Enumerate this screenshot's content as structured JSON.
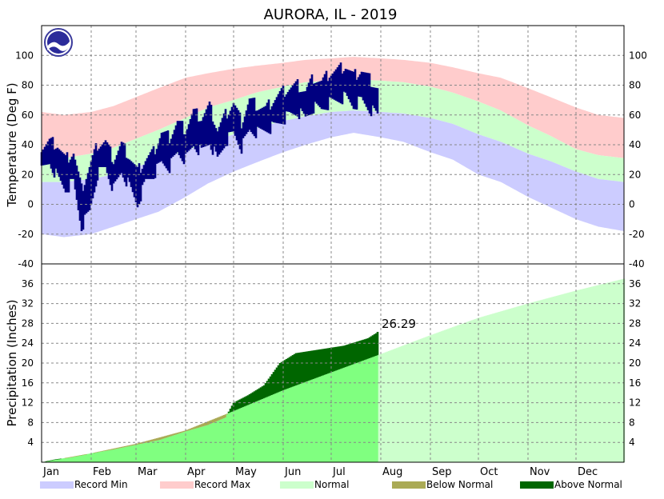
{
  "chart_data": {
    "type": "area",
    "title": "AURORA, IL - 2019",
    "months": [
      "Jan",
      "Feb",
      "Mar",
      "Apr",
      "May",
      "Jun",
      "Jul",
      "Aug",
      "Sep",
      "Oct",
      "Nov",
      "Dec"
    ],
    "grid": true,
    "legend_position": "bottom",
    "colors": {
      "record_min": "#ccccff",
      "record_max": "#ffcccc",
      "normal": "#ccffcc",
      "observed_temp": "#000080",
      "below_normal": "#aaaa55",
      "above_normal": "#006600",
      "precip_normal_ytd": "#80ff80"
    },
    "legend": [
      {
        "label": "Record Min",
        "color": "#ccccff"
      },
      {
        "label": "Record Max",
        "color": "#ffcccc"
      },
      {
        "label": "Normal",
        "color": "#ccffcc"
      },
      {
        "label": "Below Normal",
        "color": "#aaaa55"
      },
      {
        "label": "Above Normal",
        "color": "#006600"
      }
    ],
    "temperature": {
      "ylabel": "Temperature (Deg F)",
      "ylim": [
        -40,
        120
      ],
      "ticks": [
        -40,
        -20,
        0,
        20,
        40,
        60,
        80,
        100
      ],
      "day_of_year": [
        1,
        15,
        32,
        46,
        60,
        74,
        91,
        105,
        121,
        135,
        152,
        166,
        182,
        196,
        213,
        227,
        244,
        258,
        274,
        288,
        305,
        319,
        335,
        349,
        365
      ],
      "record_max": [
        62,
        60,
        62,
        66,
        72,
        78,
        85,
        88,
        91,
        93,
        95,
        97,
        98,
        99,
        98,
        97,
        95,
        92,
        88,
        85,
        78,
        72,
        65,
        60,
        58
      ],
      "normal_high": [
        31,
        31,
        34,
        38,
        44,
        50,
        58,
        65,
        70,
        75,
        79,
        82,
        83,
        84,
        83,
        82,
        79,
        75,
        69,
        63,
        53,
        46,
        37,
        33,
        31
      ],
      "normal_low": [
        15,
        15,
        17,
        20,
        25,
        30,
        36,
        41,
        47,
        51,
        56,
        59,
        62,
        63,
        62,
        61,
        58,
        54,
        47,
        42,
        34,
        29,
        22,
        17,
        15
      ],
      "record_min": [
        -20,
        -22,
        -20,
        -15,
        -10,
        -5,
        5,
        14,
        22,
        28,
        35,
        40,
        45,
        48,
        45,
        42,
        35,
        30,
        20,
        15,
        5,
        -2,
        -10,
        -15,
        -18
      ],
      "observed": {
        "day_of_year": [
          1,
          6,
          11,
          16,
          21,
          26,
          31,
          36,
          41,
          46,
          51,
          56,
          61,
          66,
          71,
          76,
          81,
          86,
          91,
          96,
          101,
          106,
          111,
          116,
          121,
          126,
          131,
          136,
          141,
          146,
          151,
          156,
          161,
          166,
          171,
          176,
          181,
          186,
          191,
          196,
          201,
          206,
          211
        ],
        "high": [
          38,
          42,
          40,
          30,
          35,
          10,
          25,
          40,
          42,
          30,
          40,
          32,
          22,
          30,
          35,
          48,
          45,
          55,
          50,
          62,
          58,
          66,
          50,
          60,
          68,
          55,
          70,
          66,
          64,
          70,
          75,
          78,
          80,
          76,
          85,
          82,
          88,
          90,
          93,
          86,
          90,
          84,
          78
        ],
        "low": [
          22,
          28,
          18,
          10,
          15,
          -15,
          -5,
          20,
          25,
          10,
          22,
          12,
          0,
          15,
          20,
          28,
          25,
          35,
          30,
          40,
          35,
          42,
          30,
          42,
          48,
          38,
          50,
          48,
          50,
          52,
          56,
          60,
          62,
          58,
          65,
          64,
          68,
          70,
          72,
          66,
          70,
          64,
          60
        ]
      }
    },
    "precipitation": {
      "ylabel": "Precipitation (Inches)",
      "ylim": [
        0,
        40
      ],
      "ticks": [
        4,
        8,
        12,
        16,
        20,
        24,
        28,
        32,
        36
      ],
      "annotation": "26.29",
      "normal_day_of_year": [
        1,
        32,
        60,
        91,
        121,
        152,
        182,
        213,
        244,
        274,
        305,
        335,
        365
      ],
      "normal_ytd": [
        0.0,
        1.8,
        3.7,
        6.4,
        10.3,
        14.5,
        18.1,
        21.8,
        25.6,
        29.1,
        32.0,
        34.6,
        37.0
      ],
      "observed_day_of_year": [
        1,
        10,
        20,
        32,
        45,
        60,
        75,
        91,
        105,
        116,
        121,
        130,
        140,
        150,
        160,
        170,
        180,
        190,
        200,
        205,
        210,
        211
      ],
      "observed_ytd": [
        0.0,
        0.6,
        1.0,
        1.8,
        2.5,
        3.5,
        4.5,
        6.2,
        7.5,
        9.0,
        12.0,
        13.5,
        15.5,
        20.0,
        22.0,
        22.5,
        23.0,
        23.5,
        24.5,
        25.0,
        26.0,
        26.29
      ]
    }
  }
}
